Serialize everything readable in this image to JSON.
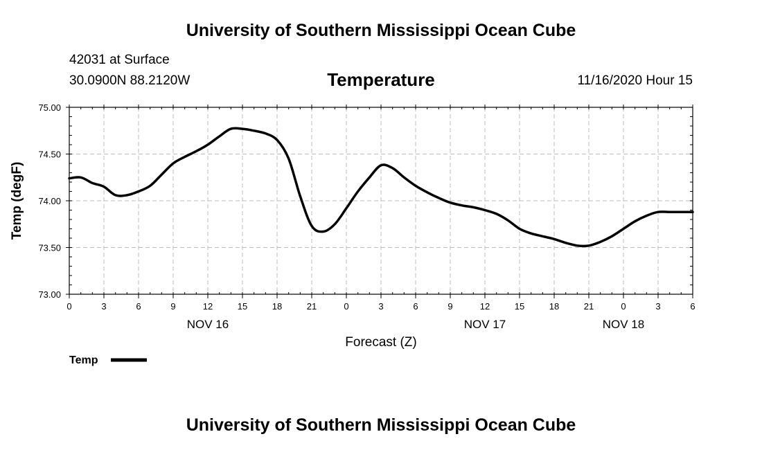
{
  "header": {
    "org_title": "University of Southern Mississippi Ocean Cube",
    "station": "42031 at Surface",
    "coords": "30.0900N 88.2120W",
    "datetime": "11/16/2020 Hour 15"
  },
  "footer": {
    "org_title": "University of Southern Mississippi Ocean Cube"
  },
  "chart_data": {
    "type": "line",
    "title": "Temperature",
    "xlabel": "Forecast (Z)",
    "ylabel": "Temp (degF)",
    "ylim": [
      73.0,
      75.0
    ],
    "y_ticks": [
      "73.00",
      "73.50",
      "74.00",
      "74.50",
      "75.00"
    ],
    "xlim": [
      0,
      54
    ],
    "x_tick_labels": [
      "0",
      "3",
      "6",
      "9",
      "12",
      "15",
      "18",
      "21",
      "0",
      "3",
      "6",
      "9",
      "12",
      "15",
      "18",
      "21",
      "0",
      "3",
      "6"
    ],
    "date_labels": [
      {
        "label": "NOV 16",
        "hour": 12
      },
      {
        "label": "NOV 17",
        "hour": 36
      },
      {
        "label": "NOV 18",
        "hour": 48
      }
    ],
    "grid": true,
    "legend": "bottom-left",
    "series": [
      {
        "name": "Temp",
        "color": "#000000",
        "x": [
          0,
          1,
          2,
          3,
          4,
          5,
          6,
          7,
          8,
          9,
          10,
          11,
          12,
          13,
          14,
          15,
          16,
          17,
          18,
          19,
          20,
          21,
          22,
          23,
          24,
          25,
          26,
          27,
          28,
          29,
          30,
          31,
          32,
          33,
          34,
          35,
          36,
          37,
          38,
          39,
          40,
          41,
          42,
          43,
          44,
          45,
          46,
          47,
          48,
          49,
          50,
          51,
          52,
          53,
          54
        ],
        "values": [
          74.24,
          74.25,
          74.19,
          74.15,
          74.06,
          74.06,
          74.1,
          74.16,
          74.28,
          74.4,
          74.47,
          74.53,
          74.6,
          74.69,
          74.77,
          74.77,
          74.75,
          74.72,
          74.65,
          74.45,
          74.05,
          73.73,
          73.67,
          73.75,
          73.92,
          74.1,
          74.25,
          74.38,
          74.35,
          74.25,
          74.16,
          74.09,
          74.03,
          73.98,
          73.95,
          73.93,
          73.9,
          73.86,
          73.79,
          73.7,
          73.65,
          73.62,
          73.59,
          73.55,
          73.52,
          73.52,
          73.56,
          73.62,
          73.7,
          73.78,
          73.84,
          73.88,
          73.88,
          73.88,
          73.88
        ]
      }
    ]
  }
}
